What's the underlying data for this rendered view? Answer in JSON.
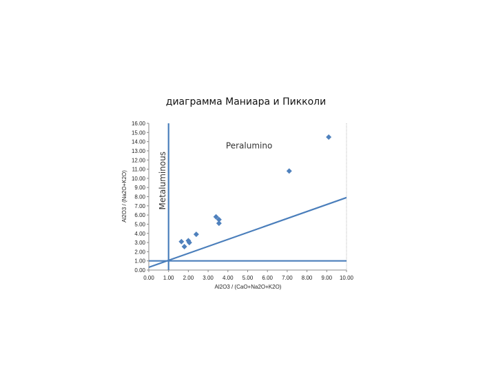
{
  "chart_data": {
    "type": "scatter",
    "title": "диаграмма Маниара и Пикколи",
    "xlabel": "Al2O3 / (CaO+Na2O+K2O)",
    "ylabel": "Al2O3 / (Na2O+K2O)",
    "xlim": [
      0,
      10
    ],
    "ylim": [
      0,
      16
    ],
    "x_ticks": [
      "0.00",
      "1.00",
      "2.00",
      "3.00",
      "4.00",
      "5.00",
      "6.00",
      "7.00",
      "8.00",
      "9.00",
      "10.00"
    ],
    "y_ticks": [
      "0.00",
      "1.00",
      "2.00",
      "3.00",
      "4.00",
      "5.00",
      "6.00",
      "7.00",
      "8.00",
      "9.00",
      "10.00",
      "11.00",
      "12.00",
      "13.00",
      "14.00",
      "15.00",
      "16.00"
    ],
    "grid": false,
    "point_color": "#4F81BD",
    "line_color": "#4A7EBB",
    "points": [
      {
        "x": 1.65,
        "y": 3.1
      },
      {
        "x": 1.8,
        "y": 2.55
      },
      {
        "x": 2.0,
        "y": 3.2
      },
      {
        "x": 2.05,
        "y": 3.0
      },
      {
        "x": 2.4,
        "y": 3.9
      },
      {
        "x": 3.4,
        "y": 5.8
      },
      {
        "x": 3.55,
        "y": 5.5
      },
      {
        "x": 3.55,
        "y": 5.1
      },
      {
        "x": 7.1,
        "y": 10.8
      },
      {
        "x": 9.1,
        "y": 14.5
      }
    ],
    "reference_lines": [
      {
        "type": "vertical",
        "x": 1.0
      },
      {
        "type": "horizontal",
        "y": 1.0
      },
      {
        "type": "line",
        "from": [
          0,
          0.3
        ],
        "to": [
          10,
          7.9
        ]
      }
    ],
    "annotations": [
      {
        "text": "Peralumino",
        "x": 3.9,
        "y": 13.5
      },
      {
        "text": "Metaluminous",
        "x": 0.7,
        "y": 10.5
      }
    ]
  }
}
